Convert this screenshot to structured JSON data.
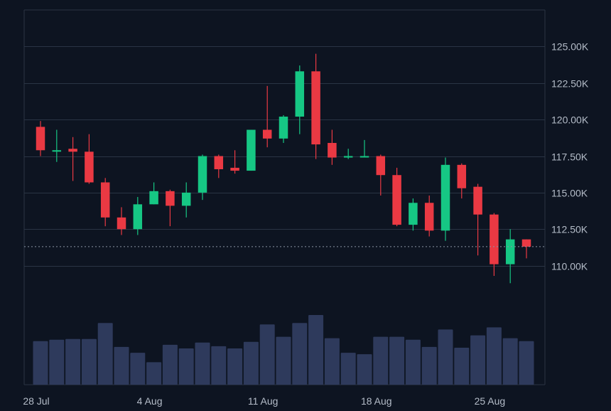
{
  "colors": {
    "background": "#0d1421",
    "grid": "#2a3444",
    "axis_text": "#b4bcc8",
    "up": "#16c784",
    "down": "#ea3943",
    "volume": "#2e3a5c",
    "price_line": "#8a94a4"
  },
  "chart_data": {
    "type": "candlestick",
    "y_axis_position": "right",
    "ylim": [
      107500,
      127500
    ],
    "y_ticks": [
      110000,
      112500,
      115000,
      117500,
      120000,
      122500,
      125000
    ],
    "y_tick_labels": [
      "110.00K",
      "112.50K",
      "115.00K",
      "117.50K",
      "120.00K",
      "122.50K",
      "125.00K"
    ],
    "x_tick_labels": [
      {
        "index": 0,
        "label": "28 Jul"
      },
      {
        "index": 7,
        "label": "4 Aug"
      },
      {
        "index": 14,
        "label": "11 Aug"
      },
      {
        "index": 21,
        "label": "18 Aug"
      },
      {
        "index": 28,
        "label": "25 Aug"
      }
    ],
    "current_price": 111300,
    "candles": [
      {
        "date": "2025-07-28",
        "open": 119500,
        "high": 119900,
        "low": 117500,
        "close": 117900
      },
      {
        "date": "2025-07-29",
        "open": 117900,
        "high": 119300,
        "low": 117100,
        "close": 117900
      },
      {
        "date": "2025-07-30",
        "open": 118000,
        "high": 118800,
        "low": 115800,
        "close": 117800
      },
      {
        "date": "2025-07-31",
        "open": 117800,
        "high": 119000,
        "low": 115600,
        "close": 115700
      },
      {
        "date": "2025-08-01",
        "open": 115700,
        "high": 116000,
        "low": 112700,
        "close": 113300
      },
      {
        "date": "2025-08-02",
        "open": 113300,
        "high": 114000,
        "low": 112100,
        "close": 112500
      },
      {
        "date": "2025-08-03",
        "open": 112500,
        "high": 114700,
        "low": 112100,
        "close": 114200
      },
      {
        "date": "2025-08-04",
        "open": 114200,
        "high": 115700,
        "low": 114200,
        "close": 115100
      },
      {
        "date": "2025-08-05",
        "open": 115100,
        "high": 115200,
        "low": 112700,
        "close": 114100
      },
      {
        "date": "2025-08-06",
        "open": 114100,
        "high": 115700,
        "low": 113300,
        "close": 115000
      },
      {
        "date": "2025-08-07",
        "open": 115000,
        "high": 117600,
        "low": 114500,
        "close": 117500
      },
      {
        "date": "2025-08-08",
        "open": 117500,
        "high": 117600,
        "low": 116000,
        "close": 116600
      },
      {
        "date": "2025-08-09",
        "open": 116700,
        "high": 117900,
        "low": 116300,
        "close": 116500
      },
      {
        "date": "2025-08-10",
        "open": 116500,
        "high": 119300,
        "low": 116500,
        "close": 119300
      },
      {
        "date": "2025-08-11",
        "open": 119300,
        "high": 122300,
        "low": 118100,
        "close": 118700
      },
      {
        "date": "2025-08-12",
        "open": 118700,
        "high": 120300,
        "low": 118400,
        "close": 120200
      },
      {
        "date": "2025-08-13",
        "open": 120200,
        "high": 123700,
        "low": 119000,
        "close": 123300
      },
      {
        "date": "2025-08-14",
        "open": 123300,
        "high": 124500,
        "low": 117300,
        "close": 118300
      },
      {
        "date": "2025-08-15",
        "open": 118400,
        "high": 119300,
        "low": 116900,
        "close": 117400
      },
      {
        "date": "2025-08-16",
        "open": 117400,
        "high": 118000,
        "low": 117300,
        "close": 117500
      },
      {
        "date": "2025-08-17",
        "open": 117500,
        "high": 118600,
        "low": 117400,
        "close": 117500
      },
      {
        "date": "2025-08-18",
        "open": 117500,
        "high": 117600,
        "low": 114800,
        "close": 116200
      },
      {
        "date": "2025-08-19",
        "open": 116200,
        "high": 116700,
        "low": 112700,
        "close": 112800
      },
      {
        "date": "2025-08-20",
        "open": 112800,
        "high": 114600,
        "low": 112400,
        "close": 114300
      },
      {
        "date": "2025-08-21",
        "open": 114300,
        "high": 114800,
        "low": 112000,
        "close": 112400
      },
      {
        "date": "2025-08-22",
        "open": 112400,
        "high": 117400,
        "low": 111700,
        "close": 116900
      },
      {
        "date": "2025-08-23",
        "open": 116900,
        "high": 117000,
        "low": 114600,
        "close": 115300
      },
      {
        "date": "2025-08-24",
        "open": 115400,
        "high": 115600,
        "low": 110700,
        "close": 113500
      },
      {
        "date": "2025-08-25",
        "open": 113500,
        "high": 113600,
        "low": 109300,
        "close": 110100
      },
      {
        "date": "2025-08-26",
        "open": 110100,
        "high": 112500,
        "low": 108800,
        "close": 111800
      },
      {
        "date": "2025-08-27",
        "open": 111800,
        "high": 111800,
        "low": 110500,
        "close": 111300
      }
    ],
    "volumes": [
      0.6,
      0.62,
      0.63,
      0.63,
      0.85,
      0.52,
      0.44,
      0.31,
      0.55,
      0.5,
      0.58,
      0.53,
      0.5,
      0.59,
      0.83,
      0.66,
      0.85,
      0.96,
      0.64,
      0.44,
      0.42,
      0.66,
      0.66,
      0.62,
      0.52,
      0.76,
      0.51,
      0.68,
      0.79,
      0.64,
      0.6
    ]
  }
}
